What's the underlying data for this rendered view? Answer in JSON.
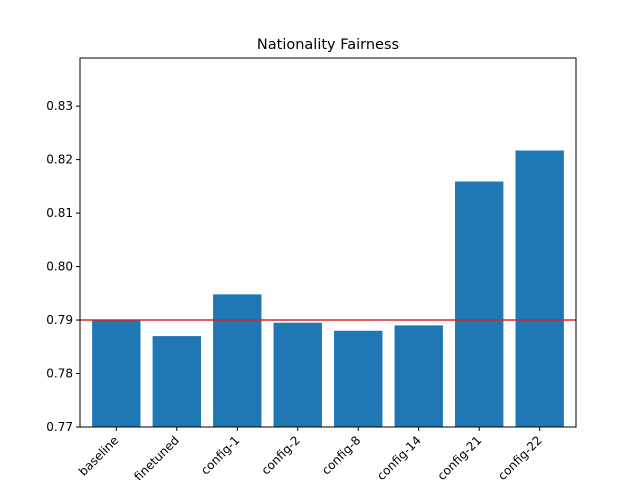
{
  "chart_data": {
    "type": "bar",
    "title": "Nationality Fairness",
    "xlabel": "",
    "ylabel": "",
    "categories": [
      "baseline",
      "finetuned",
      "config-1",
      "config-2",
      "config-8",
      "config-14",
      "config-21",
      "config-22"
    ],
    "values": [
      0.79,
      0.787,
      0.7948,
      0.7895,
      0.788,
      0.789,
      0.8159,
      0.8217
    ],
    "ylim": [
      0.77,
      0.839
    ],
    "yticks": [
      0.77,
      0.78,
      0.79,
      0.8,
      0.81,
      0.82,
      0.83
    ],
    "ytick_labels": [
      "0.77",
      "0.78",
      "0.79",
      "0.80",
      "0.81",
      "0.82",
      "0.83"
    ],
    "reference_line": 0.79,
    "bar_color": "#1f77b4",
    "reference_line_color": "#d62728",
    "grid": false,
    "legend": "none"
  }
}
